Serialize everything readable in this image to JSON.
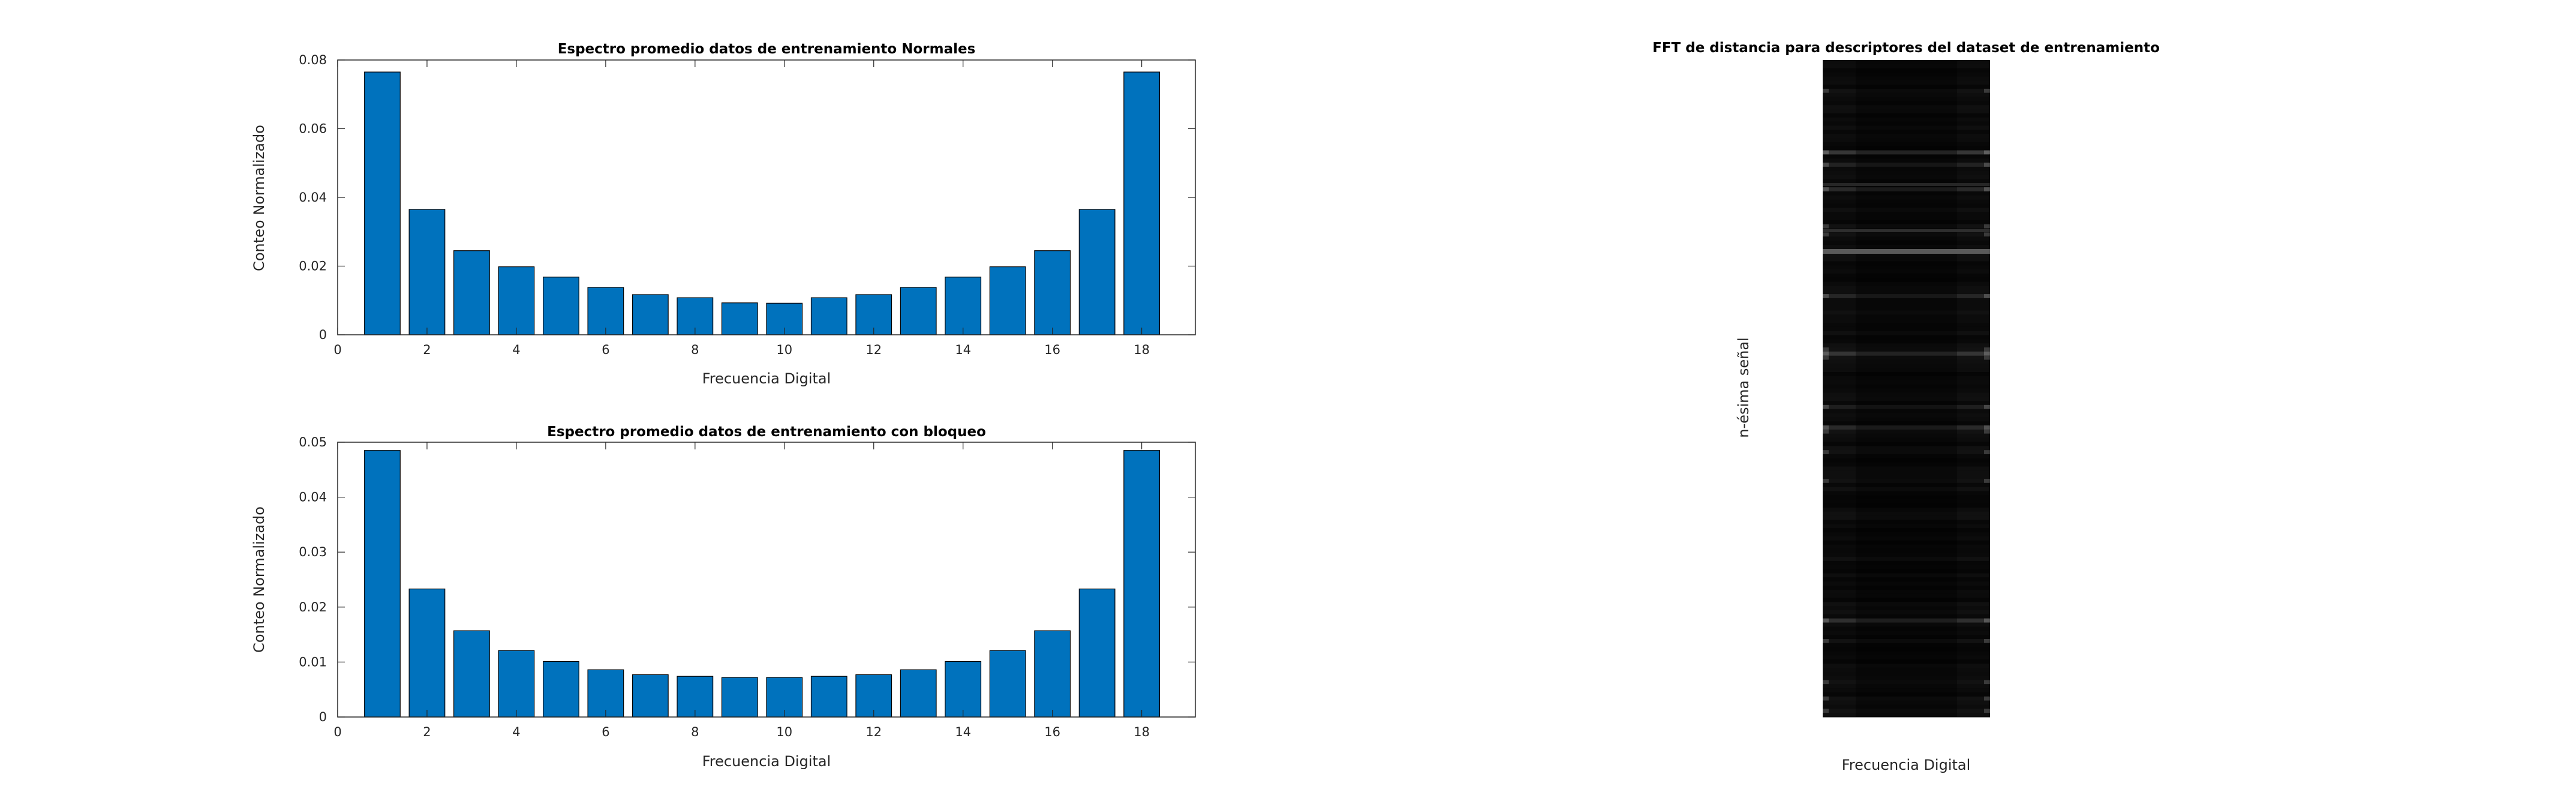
{
  "chart_data": [
    {
      "type": "bar",
      "title": "Espectro promedio datos de entrenamiento Normales",
      "xlabel": "Frecuencia Digital",
      "ylabel": "Conteo Normalizado",
      "x": [
        1,
        2,
        3,
        4,
        5,
        6,
        7,
        8,
        9,
        10,
        11,
        12,
        13,
        14,
        15,
        16,
        17,
        18
      ],
      "values": [
        0.0765,
        0.0365,
        0.0245,
        0.0198,
        0.0168,
        0.0138,
        0.0117,
        0.0108,
        0.0093,
        0.0092,
        0.0108,
        0.0117,
        0.0138,
        0.0168,
        0.0198,
        0.0245,
        0.0365,
        0.0765
      ],
      "xlim": [
        0,
        19.2
      ],
      "ylim": [
        0,
        0.08
      ],
      "xticks": [
        "0",
        "2",
        "4",
        "6",
        "8",
        "10",
        "12",
        "14",
        "16",
        "18"
      ],
      "yticks": [
        "0",
        "0.02",
        "0.04",
        "0.06",
        "0.08"
      ],
      "bar_color": "#0072BD"
    },
    {
      "type": "bar",
      "title": "Espectro promedio datos de entrenamiento con bloqueo",
      "xlabel": "Frecuencia Digital",
      "ylabel": "Conteo Normalizado",
      "x": [
        1,
        2,
        3,
        4,
        5,
        6,
        7,
        8,
        9,
        10,
        11,
        12,
        13,
        14,
        15,
        16,
        17,
        18
      ],
      "values": [
        0.0485,
        0.0233,
        0.0157,
        0.0121,
        0.0101,
        0.0086,
        0.0077,
        0.0074,
        0.0072,
        0.0072,
        0.0074,
        0.0077,
        0.0086,
        0.0101,
        0.0121,
        0.0157,
        0.0233,
        0.0485
      ],
      "xlim": [
        0,
        19.2
      ],
      "ylim": [
        0,
        0.05
      ],
      "xticks": [
        "0",
        "2",
        "4",
        "6",
        "8",
        "10",
        "12",
        "14",
        "16",
        "18"
      ],
      "yticks": [
        "0",
        "0.01",
        "0.02",
        "0.03",
        "0.04",
        "0.05"
      ],
      "bar_color": "#0072BD"
    },
    {
      "type": "heatmap",
      "title": "FFT de distancia para descriptores del dataset de entrenamiento",
      "xlabel": "Frecuencia Digital",
      "ylabel": "n-ésima señal",
      "colormap": "gray",
      "background": "#060606"
    }
  ]
}
